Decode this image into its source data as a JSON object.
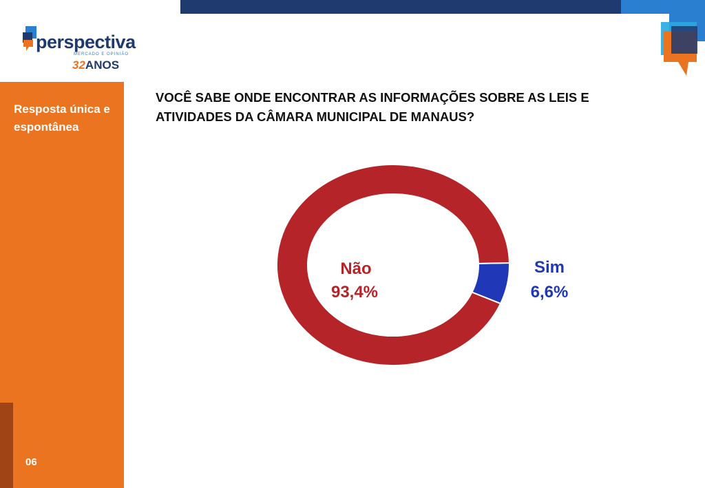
{
  "logo": {
    "name": "perspectiva",
    "tagline": "MERCADO E OPINIÃO",
    "anniversary_number": "32",
    "anniversary_word": "ANOS"
  },
  "sidebar": {
    "note": "Resposta única e espontânea",
    "page": "06"
  },
  "title": "VOCÊ SABE ONDE ENCONTRAR AS INFORMAÇÕES SOBRE AS LEIS E ATIVIDADES DA CÂMARA MUNICIPAL DE MANAUS?",
  "colors": {
    "orange": "#eb7420",
    "navy": "#1f3a6e",
    "nao": "#b52428",
    "sim": "#2038b8"
  },
  "chart_data": {
    "type": "pie",
    "donut": true,
    "categories": [
      "Não",
      "Sim"
    ],
    "values": [
      93.4,
      6.6
    ],
    "labels": [
      "93,4%",
      "6,6%"
    ],
    "colors": [
      "#b52428",
      "#2038b8"
    ]
  }
}
